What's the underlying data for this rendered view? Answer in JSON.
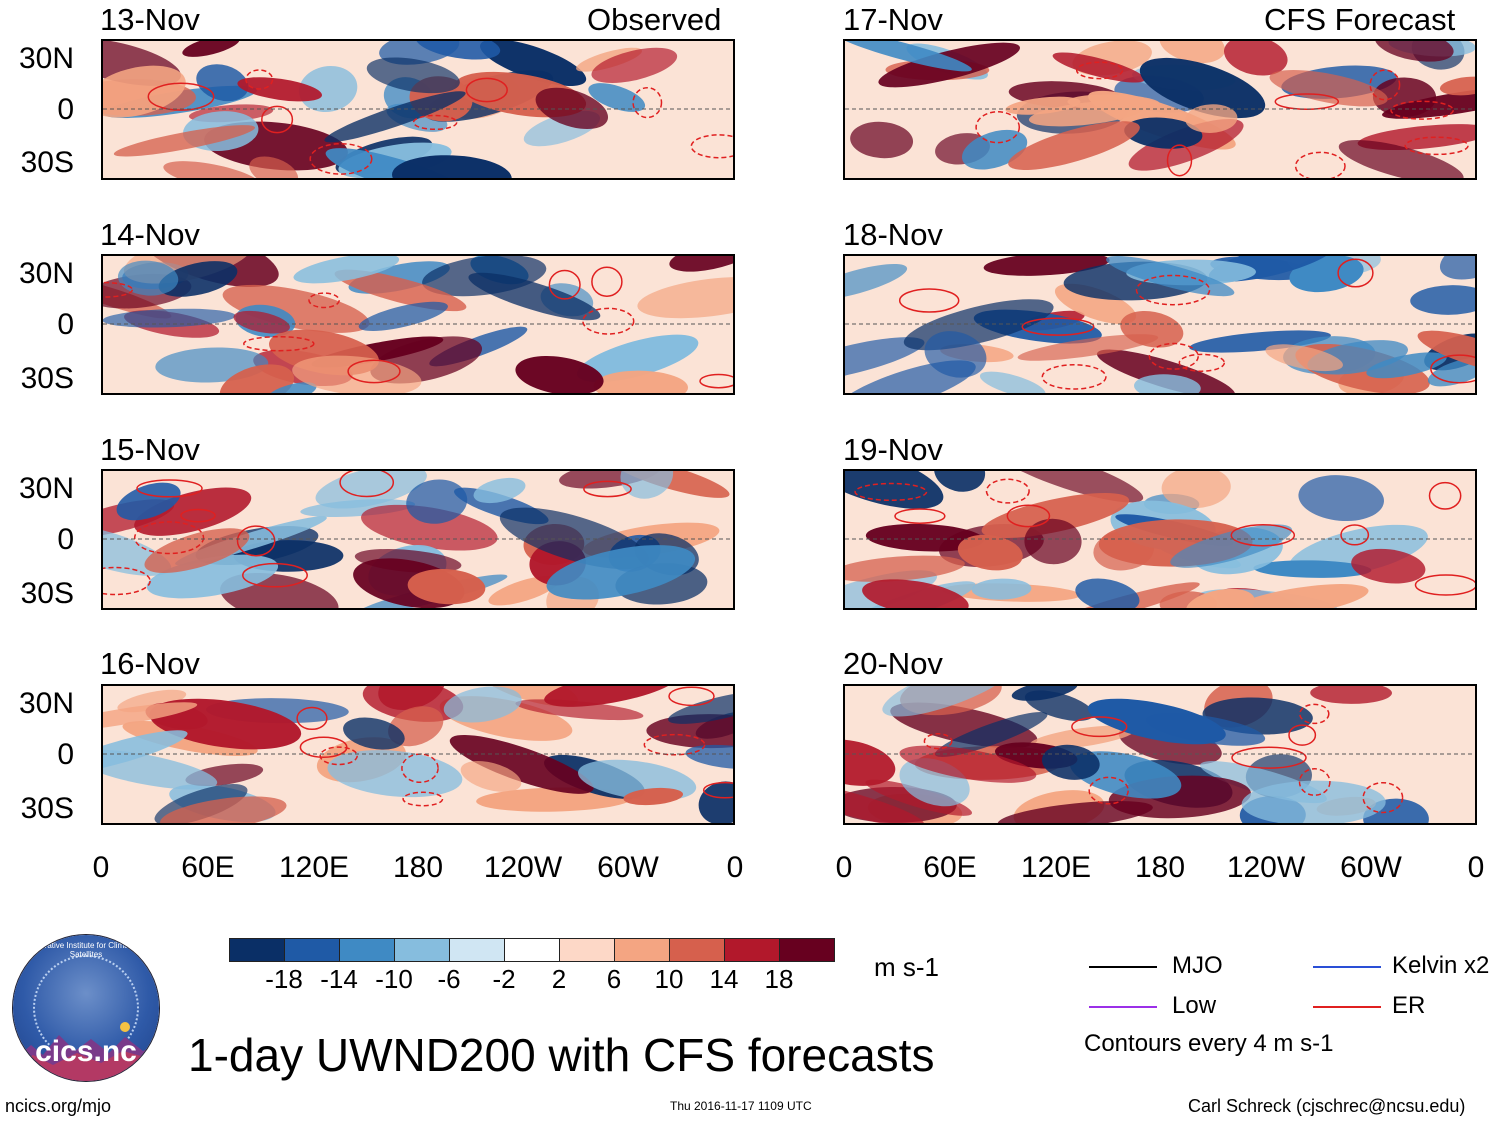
{
  "panels_left": [
    {
      "date": "13-Nov",
      "tag": "Observed"
    },
    {
      "date": "14-Nov"
    },
    {
      "date": "15-Nov"
    },
    {
      "date": "16-Nov"
    }
  ],
  "panels_right": [
    {
      "date": "17-Nov",
      "tag": "CFS Forecast"
    },
    {
      "date": "18-Nov"
    },
    {
      "date": "19-Nov"
    },
    {
      "date": "20-Nov"
    }
  ],
  "lat_labels": [
    "30N",
    "0",
    "30S"
  ],
  "lon_labels": [
    "0",
    "60E",
    "120E",
    "180",
    "120W",
    "60W",
    "0"
  ],
  "colorbar": {
    "colors": [
      "#0a2f66",
      "#1f5aa6",
      "#3f8ac4",
      "#86bdde",
      "#d0e6f3",
      "#ffffff",
      "#fdd8c7",
      "#f4a582",
      "#d6604d",
      "#b2182b",
      "#67001f"
    ],
    "ticks": [
      "-18",
      "-14",
      "-10",
      "-6",
      "-2",
      "2",
      "6",
      "10",
      "14",
      "18"
    ],
    "units": "m s-1"
  },
  "legend": {
    "items": [
      {
        "label": "MJO",
        "color": "#000000"
      },
      {
        "label": "Kelvin x2",
        "color": "#2a4fd6"
      },
      {
        "label": "Low",
        "color": "#9b30e8"
      },
      {
        "label": "ER",
        "color": "#e02020"
      }
    ],
    "note": "Contours every 4 m s-1"
  },
  "title": "1-day UWND200 with CFS forecasts",
  "footer": {
    "site": "ncics.org/mjo",
    "timestamp": "Thu 2016-11-17 1109 UTC",
    "author": "Carl Schreck (cjschrec@ncsu.edu)"
  },
  "logo": {
    "arc_text": "Cooperative Institute for Climate and Satellites",
    "name": "cics.nc"
  }
}
